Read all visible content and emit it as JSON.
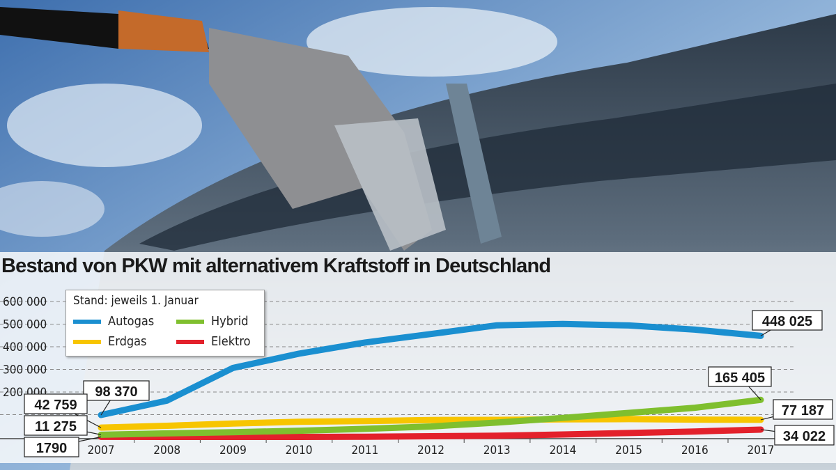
{
  "chart_data": {
    "type": "line",
    "title": "Bestand von PKW mit alternativem Kraftstoff in Deutschland",
    "legend_title": "Stand: jeweils 1. Januar",
    "legend_placement": "top-left",
    "x": [
      2007,
      2008,
      2009,
      2010,
      2011,
      2012,
      2013,
      2014,
      2015,
      2016,
      2017
    ],
    "ylim": [
      0,
      600000
    ],
    "yticks": [
      200000,
      300000,
      400000,
      500000,
      600000
    ],
    "ytick_labels": [
      "200 000",
      "300 000",
      "400 000",
      "500 000",
      "600 000"
    ],
    "grid": true,
    "series": [
      {
        "name": "Autogas",
        "color": "#1a8fd0",
        "values": [
          98370,
          162041,
          306402,
          369430,
          418659,
          456252,
          494777,
          500867,
          494148,
          475711,
          448025
        ],
        "start_label": "98 370",
        "end_label": "448 025"
      },
      {
        "name": "Erdgas",
        "color": "#f7c500",
        "values": [
          42759,
          50614,
          60744,
          68515,
          71519,
          76284,
          76953,
          79065,
          80300,
          77994,
          77187
        ],
        "start_label": "42 759",
        "end_label": "77 187"
      },
      {
        "name": "Hybrid",
        "color": "#7fbf2e",
        "values": [
          11275,
          17307,
          22330,
          28862,
          37256,
          47642,
          64995,
          85575,
          107754,
          130365,
          165405
        ],
        "start_label": "11 275",
        "end_label": "165 405"
      },
      {
        "name": "Elektro",
        "color": "#e3212b",
        "values": [
          1790,
          1436,
          1452,
          1588,
          2307,
          4541,
          7114,
          12156,
          18948,
          25502,
          34022
        ],
        "start_label": "1790",
        "end_label": "34 022"
      }
    ]
  }
}
